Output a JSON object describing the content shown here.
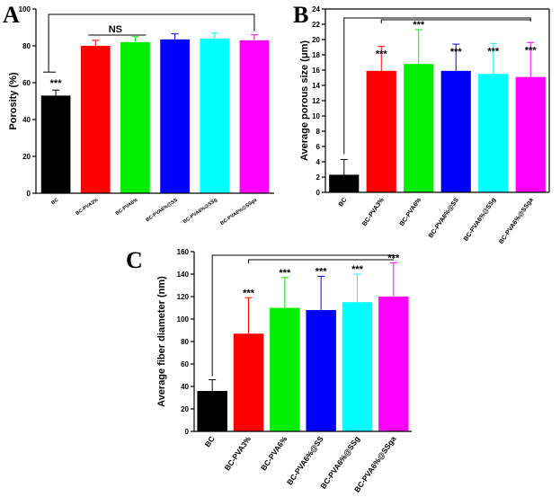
{
  "chart_data": [
    {
      "type": "bar",
      "panel": "A",
      "ylabel": "Porosity (%)",
      "xlabel": "",
      "ylim": [
        0,
        100
      ],
      "yticks": [
        0,
        20,
        40,
        60,
        80,
        100
      ],
      "categories": [
        "BC",
        "BC-PVA3%",
        "BC-PVA6%",
        "BC-PVA6%@SS",
        "BC-PVA6%@SSg",
        "BC-PVA6%@SSga"
      ],
      "values": [
        53,
        80,
        82,
        83.5,
        84,
        83
      ],
      "errors": [
        3,
        3,
        3,
        3,
        3,
        3
      ],
      "colors": [
        "#000000",
        "#ff0000",
        "#00ee00",
        "#0000ff",
        "#00ffff",
        "#ff00ff"
      ],
      "annotations": [
        {
          "text": "***",
          "bar": 0
        },
        {
          "text": "NS",
          "bracket": true
        }
      ]
    },
    {
      "type": "bar",
      "panel": "B",
      "ylabel": "Average porous size (μm)",
      "xlabel": "",
      "ylim": [
        0,
        24
      ],
      "yticks": [
        0,
        2,
        4,
        6,
        8,
        10,
        12,
        14,
        16,
        18,
        20,
        22,
        24
      ],
      "categories": [
        "BC",
        "BC-PVA3%",
        "BC-PVA6%",
        "BC-PVA6%@SS",
        "BC-PVA6%@SSg",
        "BC-PVA6%@SSga"
      ],
      "values": [
        2.3,
        15.9,
        16.8,
        15.9,
        15.5,
        15.1
      ],
      "errors": [
        2.0,
        3.2,
        4.5,
        3.5,
        4.0,
        4.5
      ],
      "colors": [
        "#000000",
        "#ff0000",
        "#00ee00",
        "#0000ff",
        "#00ffff",
        "#ff00ff"
      ],
      "annotations": [
        {
          "text": "***",
          "bar": 1
        },
        {
          "text": "***",
          "bar": 2
        },
        {
          "text": "***",
          "bar": 3
        },
        {
          "text": "***",
          "bar": 4
        },
        {
          "text": "***",
          "bar": 5
        }
      ]
    },
    {
      "type": "bar",
      "panel": "C",
      "ylabel": "Average fiber diameter (nm)",
      "xlabel": "",
      "ylim": [
        0,
        160
      ],
      "yticks": [
        0,
        20,
        40,
        60,
        80,
        100,
        120,
        140,
        160
      ],
      "categories": [
        "BC",
        "BC-PVA3%",
        "BC-PVA6%",
        "BC-PVA6%@SS",
        "BC-PVA6%@SSg",
        "BC-PVA6%@SSga"
      ],
      "values": [
        36,
        87,
        110,
        108,
        115,
        120
      ],
      "errors": [
        10,
        32,
        27,
        30,
        25,
        30
      ],
      "colors": [
        "#000000",
        "#ff0000",
        "#00ee00",
        "#0000ff",
        "#00ffff",
        "#ff00ff"
      ],
      "annotations": [
        {
          "text": "***",
          "bar": 1
        },
        {
          "text": "***",
          "bar": 2
        },
        {
          "text": "***",
          "bar": 3
        },
        {
          "text": "***",
          "bar": 4
        },
        {
          "text": "***",
          "bar": 5
        }
      ]
    }
  ]
}
